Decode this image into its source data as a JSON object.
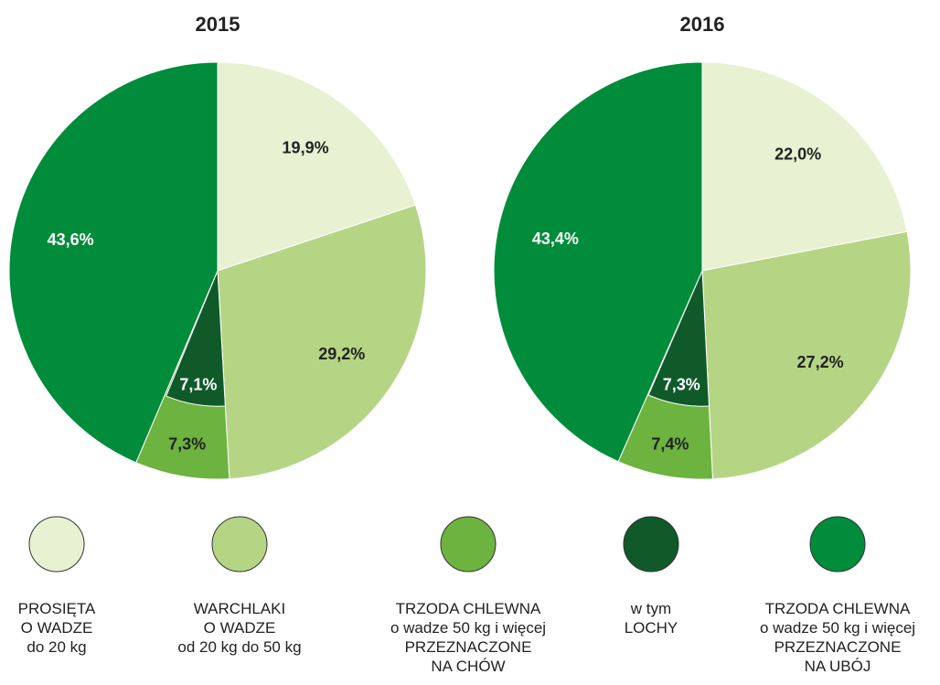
{
  "chart_data": [
    {
      "type": "pie",
      "title": "2015",
      "categories": [
        "PROSIĘTA\nO WADZE\ndo 20 kg",
        "WARCHLAKI\nO WADZE\nod 20 kg do 50 kg",
        "TRZODA CHLEWNA\no wadze 50 kg i więcej\nPRZEZNACZONE\nNA CHÓW",
        "w tym\nLOCHY",
        "TRZODA CHLEWNA\no wadze 50 kg i więcej\nPRZEZNACZONE\nNA UBÓJ"
      ],
      "values": [
        19.9,
        29.2,
        7.3,
        7.1,
        43.6
      ],
      "value_labels": [
        "19,9%",
        "29,2%",
        "7,3%",
        "7,1%",
        "43,6%"
      ],
      "colors": [
        "#e8f2d2",
        "#b5d584",
        "#6db33f",
        "#105a2a",
        "#008c3a"
      ],
      "nested_slice": 3
    },
    {
      "type": "pie",
      "title": "2016",
      "categories": [
        "PROSIĘTA\nO WADZE\ndo 20 kg",
        "WARCHLAKI\nO WADZE\nod 20 kg do 50 kg",
        "TRZODA CHLEWNA\no wadze 50 kg i więcej\nPRZEZNACZONE\nNA CHÓW",
        "w tym\nLOCHY",
        "TRZODA CHLEWNA\no wadze 50 kg i więcej\nPRZEZNACZONE\nNA UBÓJ"
      ],
      "values": [
        22.0,
        27.2,
        7.4,
        7.3,
        43.4
      ],
      "value_labels": [
        "22,0%",
        "27,2%",
        "7,4%",
        "7,3%",
        "43,4%"
      ],
      "colors": [
        "#e8f2d2",
        "#b5d584",
        "#6db33f",
        "#105a2a",
        "#008c3a"
      ],
      "nested_slice": 3
    }
  ]
}
